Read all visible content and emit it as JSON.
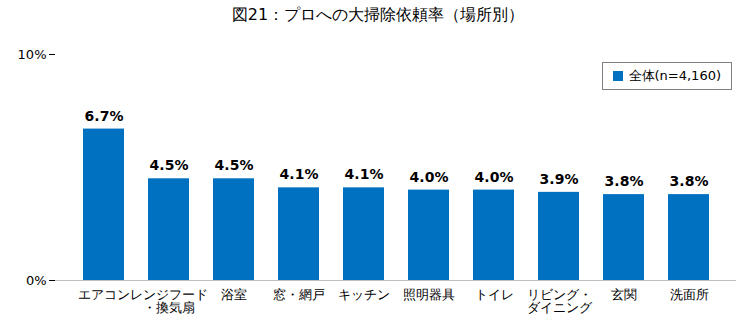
{
  "chart_data": {
    "type": "bar",
    "title": "図21：プロへの大掃除依頼率（場所別）",
    "categories": [
      "エアコン",
      "レンジフード\n・換気扇",
      "浴室",
      "窓・網戸",
      "キッチン",
      "照明器具",
      "トイレ",
      "リビング・\nダイニング",
      "玄関",
      "洗面所"
    ],
    "series": [
      {
        "name": "全体(n=4,160)",
        "color": "#0070c0",
        "values": [
          6.7,
          4.5,
          4.5,
          4.1,
          4.1,
          4.0,
          4.0,
          3.9,
          3.8,
          3.8
        ],
        "value_labels": [
          "6.7%",
          "4.5%",
          "4.5%",
          "4.1%",
          "4.1%",
          "4.0%",
          "4.0%",
          "3.9%",
          "3.8%",
          "3.8%"
        ]
      }
    ],
    "ylim": [
      0,
      10
    ],
    "yticks": [
      {
        "value": 0,
        "label": "0%"
      },
      {
        "value": 10,
        "label": "10%"
      }
    ],
    "grid": false,
    "legend": "top-right",
    "data_labels": true
  }
}
